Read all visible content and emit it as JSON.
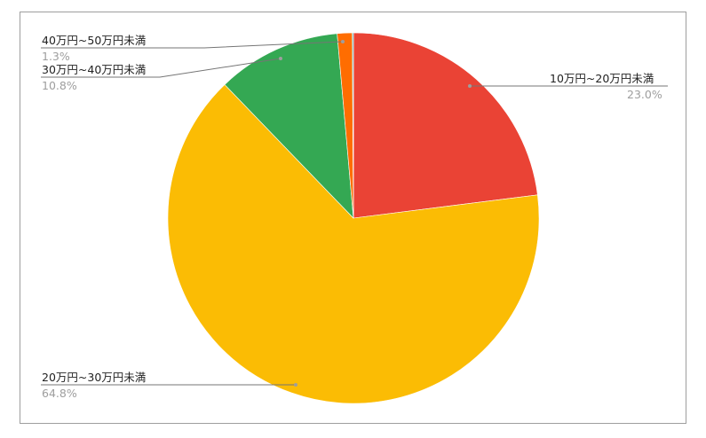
{
  "chart_data": {
    "type": "pie",
    "title": "",
    "start_angle": "top",
    "direction": "clockwise",
    "slices": [
      {
        "label": "10万円~20万円未満",
        "value": 23.0,
        "pct_label": "23.0%",
        "color": "#ea4335"
      },
      {
        "label": "20万円~30万円未満",
        "value": 64.8,
        "pct_label": "64.8%",
        "color": "#fbbc04"
      },
      {
        "label": "30万円~40万円未満",
        "value": 10.8,
        "pct_label": "10.8%",
        "color": "#34a853"
      },
      {
        "label": "40万円~50万円未満",
        "value": 1.3,
        "pct_label": "1.3%",
        "color": "#ff6d01"
      },
      {
        "label": "",
        "value": 0.1,
        "pct_label": "",
        "color": "#46bdc6"
      }
    ],
    "legend": "none (leader-line labels)"
  }
}
